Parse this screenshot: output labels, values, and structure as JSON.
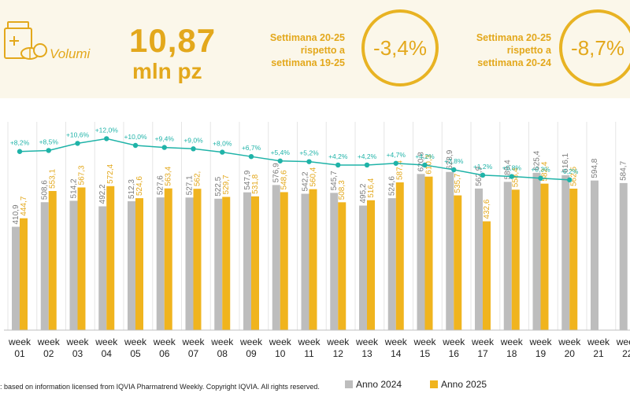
{
  "header": {
    "label": "Volumi",
    "value": "10,87",
    "unit": "mln pz",
    "comparison_1": {
      "line1": "Settimana 20-25",
      "line2": "rispetto a",
      "line3": "settimana 19-25",
      "value": "-3,4%"
    },
    "comparison_2": {
      "line1": "Settimana 20-25",
      "line2": "rispetto a",
      "line3": "settimana 20-24",
      "value": "-8,7%"
    },
    "icon": "pills-box-icon"
  },
  "footnote": ": based on information licensed from IQVIA Pharmatrend Weekly. Copyright IQVIA. All rights reserved.",
  "colors": {
    "accent": "#e3a81c",
    "anno_2024": "#bdbdbd",
    "anno_2025": "#f0b41e",
    "growth_line": "#1fb3a8"
  },
  "chart_data": {
    "type": "bar",
    "categories": [
      [
        "week",
        "01"
      ],
      [
        "week",
        "02"
      ],
      [
        "week",
        "03"
      ],
      [
        "week",
        "04"
      ],
      [
        "week",
        "05"
      ],
      [
        "week",
        "06"
      ],
      [
        "week",
        "07"
      ],
      [
        "week",
        "08"
      ],
      [
        "week",
        "09"
      ],
      [
        "week",
        "10"
      ],
      [
        "week",
        "11"
      ],
      [
        "week",
        "12"
      ],
      [
        "week",
        "13"
      ],
      [
        "week",
        "14"
      ],
      [
        "week",
        "15"
      ],
      [
        "week",
        "16"
      ],
      [
        "week",
        "17"
      ],
      [
        "week",
        "18"
      ],
      [
        "week",
        "19"
      ],
      [
        "week",
        "20"
      ],
      [
        "week",
        "21"
      ],
      [
        "week",
        "22"
      ]
    ],
    "series": [
      {
        "name": "Anno 2024",
        "color": "#bdbdbd",
        "values": [
          410.9,
          508.6,
          514.2,
          492.2,
          512.3,
          527.6,
          527.1,
          522.5,
          547.9,
          576.9,
          542.2,
          545.7,
          495.2,
          524.6,
          620.8,
          628.9,
          562.9,
          589.4,
          625.4,
          616.1,
          594.8,
          584.7
        ],
        "labels": [
          "410,9",
          "508,6",
          "514,2",
          "492,2",
          "512,3",
          "527,6",
          "527,1",
          "522,5",
          "547,9",
          "576,9",
          "542,2",
          "545,7",
          "495,2",
          "524,6",
          "620,8",
          "628,9",
          "562,9",
          "589,4",
          "625,4",
          "616,1",
          "594,8",
          "584,7"
        ]
      },
      {
        "name": "Anno 2025",
        "color": "#f0b41e",
        "values": [
          444.7,
          553.1,
          567.3,
          572.4,
          524.6,
          563.4,
          562,
          529.7,
          531.8,
          548.6,
          560.4,
          508.3,
          516.4,
          587.4,
          610.3,
          535.7,
          432.6,
          558.4,
          582.4,
          562.5,
          null,
          null
        ],
        "labels": [
          "444,7",
          "553,1",
          "567,3",
          "572,4",
          "524,6",
          "563,4",
          "562,",
          "529,7",
          "531,8",
          "548,6",
          "560,4",
          "508,3",
          "516,4",
          "587,4",
          "610,3",
          "535,7",
          "432,6",
          "558,4",
          "582,4",
          "562,5",
          "",
          ""
        ]
      }
    ],
    "growth": {
      "values": [
        8.2,
        8.5,
        10.6,
        12.0,
        10.0,
        9.4,
        9.0,
        8.0,
        6.7,
        5.4,
        5.2,
        4.2,
        4.2,
        4.7,
        4.2,
        2.8,
        1.2,
        0.8,
        0.3,
        -0.2
      ],
      "labels": [
        "+8,2%",
        "+8,5%",
        "+10,6%",
        "+12,0%",
        "+10,0%",
        "+9,4%",
        "+9,0%",
        "+8,0%",
        "+6,7%",
        "+5,4%",
        "+5,2%",
        "+4,2%",
        "+4,2%",
        "+4,7%",
        "+4,2%",
        "+2,8%",
        "+1,2%",
        "+0,8%",
        "+0,3%",
        "-0,2%"
      ]
    },
    "legend": [
      "Anno 2024",
      "Anno 2025"
    ],
    "ylim": [
      0,
      1000
    ],
    "legend_position": "bottom-center"
  }
}
